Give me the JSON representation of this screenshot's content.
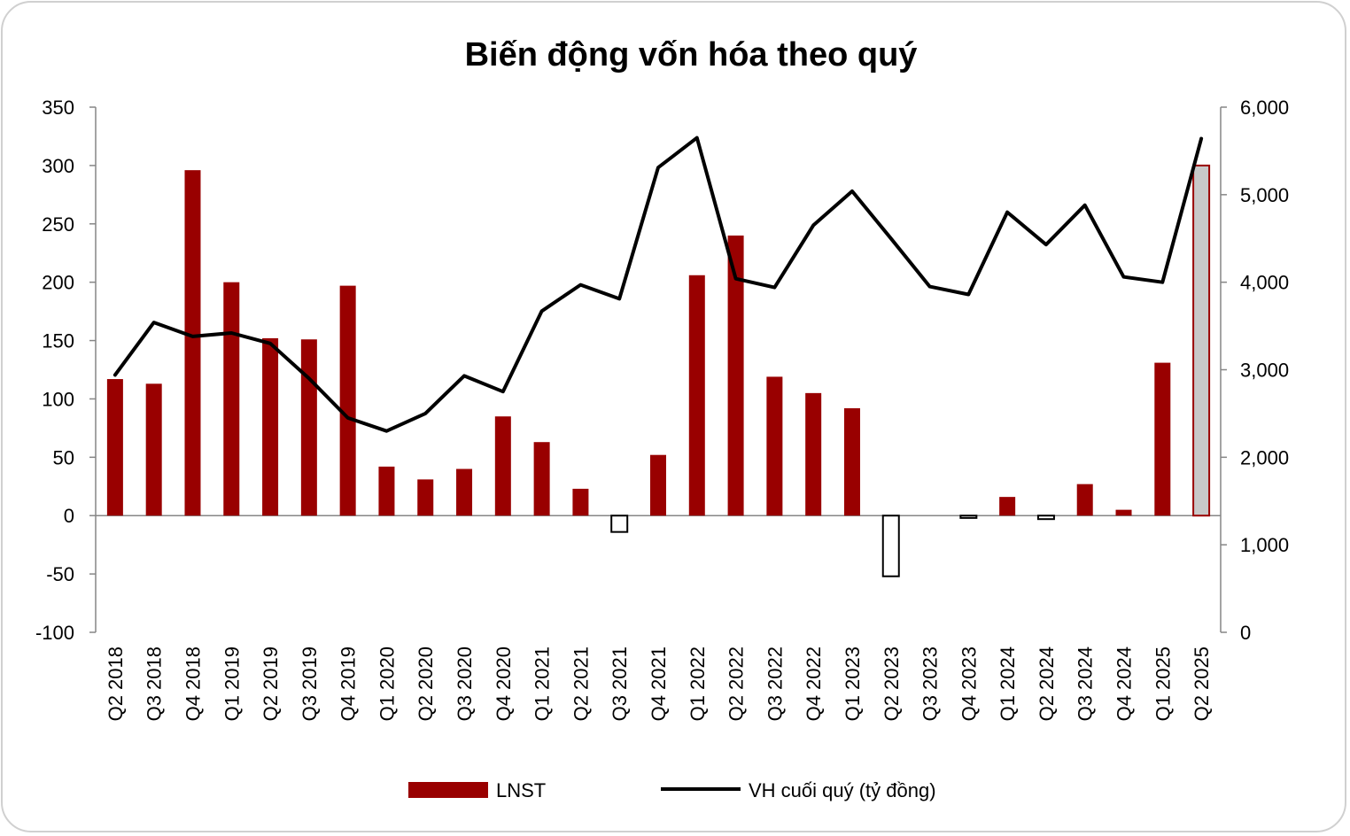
{
  "chart_data": {
    "type": "bar+line",
    "title": "Biến động vốn hóa theo quý",
    "categories": [
      "Q2 2018",
      "Q3 2018",
      "Q4 2018",
      "Q1 2019",
      "Q2 2019",
      "Q3 2019",
      "Q4 2019",
      "Q1 2020",
      "Q2 2020",
      "Q3 2020",
      "Q4 2020",
      "Q1 2021",
      "Q2 2021",
      "Q3 2021",
      "Q4 2021",
      "Q1 2022",
      "Q2 2022",
      "Q3 2022",
      "Q4 2022",
      "Q1 2023",
      "Q2 2023",
      "Q3 2023",
      "Q4 2023",
      "Q1 2024",
      "Q2 2024",
      "Q3 2024",
      "Q4 2024",
      "Q1 2025",
      "Q2 2025"
    ],
    "series": [
      {
        "name": "LNST",
        "type": "bar",
        "axis": "left",
        "color": "#990000",
        "values": [
          117,
          113,
          296,
          200,
          152,
          151,
          197,
          42,
          31,
          40,
          85,
          63,
          23,
          -14,
          52,
          206,
          240,
          119,
          105,
          92,
          -52,
          0,
          -2,
          16,
          -3,
          27,
          5,
          131,
          300
        ]
      },
      {
        "name": "VH cuối quý (tỷ đồng)",
        "type": "line",
        "axis": "right",
        "color": "#000000",
        "values": [
          2940,
          3540,
          3380,
          3420,
          3300,
          2900,
          2450,
          2300,
          2500,
          2930,
          2750,
          3670,
          3970,
          3810,
          5310,
          5650,
          4040,
          3940,
          4650,
          5040,
          4500,
          3950,
          3860,
          4800,
          4430,
          4880,
          4060,
          4000,
          5640
        ]
      }
    ],
    "y_left": {
      "min": -100,
      "max": 350,
      "step": 50,
      "tick_labels": [
        "-100",
        "-50",
        "0",
        "50",
        "100",
        "150",
        "200",
        "250",
        "300",
        "350"
      ]
    },
    "y_right": {
      "min": 0,
      "max": 6000,
      "step": 1000,
      "tick_labels": [
        "0",
        "1,000",
        "2,000",
        "3,000",
        "4,000",
        "5,000",
        "6,000"
      ]
    },
    "legend": {
      "placement": "bottom",
      "entries": [
        "LNST",
        "VH cuối quý (tỷ đồng)"
      ]
    },
    "negative_bar_style": "hollow",
    "highlight_last_bar_fill": "#c8c8c8",
    "grid": false
  }
}
